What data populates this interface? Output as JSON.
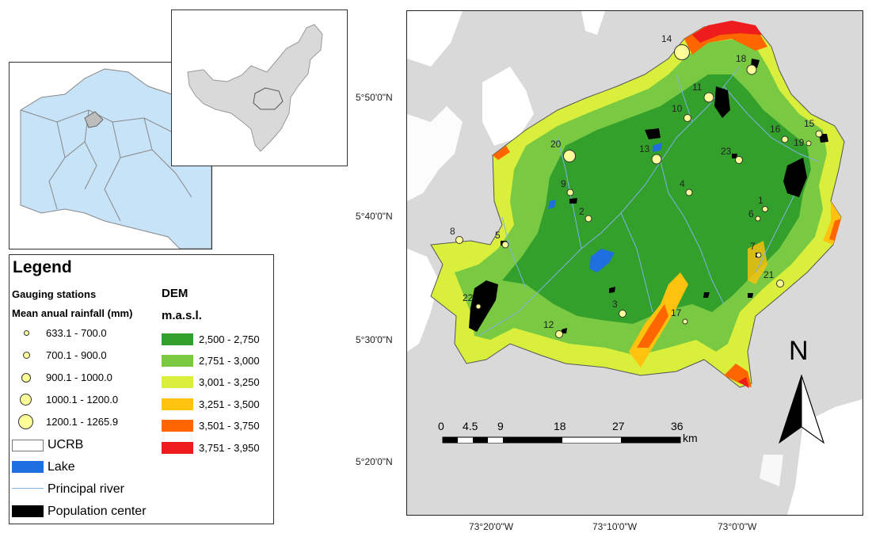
{
  "legend": {
    "title": "Legend",
    "stations_heading": "Gauging stations",
    "rainfall_heading": "Mean anual rainfall (mm)",
    "rainfall_classes": [
      "633.1 - 700.0",
      "700.1 - 900.0",
      "900.1 - 1000.0",
      "1000.1 - 1200.0",
      "1200.1 - 1265.9"
    ],
    "dem_heading": "DEM",
    "dem_unit": "m.a.s.l.",
    "dem_classes": [
      {
        "label": "2,500 - 2,750",
        "color": "#33a02c"
      },
      {
        "label": "2,751 - 3,000",
        "color": "#7ac943"
      },
      {
        "label": "3,001 - 3,250",
        "color": "#d9ef3c"
      },
      {
        "label": "3,251 - 3,500",
        "color": "#ffc20e"
      },
      {
        "label": "3,501 - 3,750",
        "color": "#ff6600"
      },
      {
        "label": "3,751 - 3,950",
        "color": "#ee1c1c"
      }
    ],
    "ucrb": "UCRB",
    "lake": "Lake",
    "river": "Principal river",
    "population": "Population center",
    "lake_color": "#1f6fe0",
    "population_color": "#000000"
  },
  "map": {
    "lat_labels": [
      "5°50'0\"N",
      "5°40'0\"N",
      "5°30'0\"N",
      "5°20'0\"N"
    ],
    "lon_labels": [
      "73°20'0\"W",
      "73°10'0\"W",
      "73°0'0\"W"
    ],
    "scale_ticks": [
      "0",
      "4.5",
      "9",
      "18",
      "27",
      "36"
    ],
    "scale_unit": "km",
    "north": "N",
    "stations": [
      "1",
      "2",
      "3",
      "4",
      "5",
      "6",
      "7",
      "8",
      "9",
      "10",
      "11",
      "12",
      "13",
      "14",
      "15",
      "16",
      "17",
      "18",
      "19",
      "20",
      "21",
      "22",
      "23"
    ]
  }
}
